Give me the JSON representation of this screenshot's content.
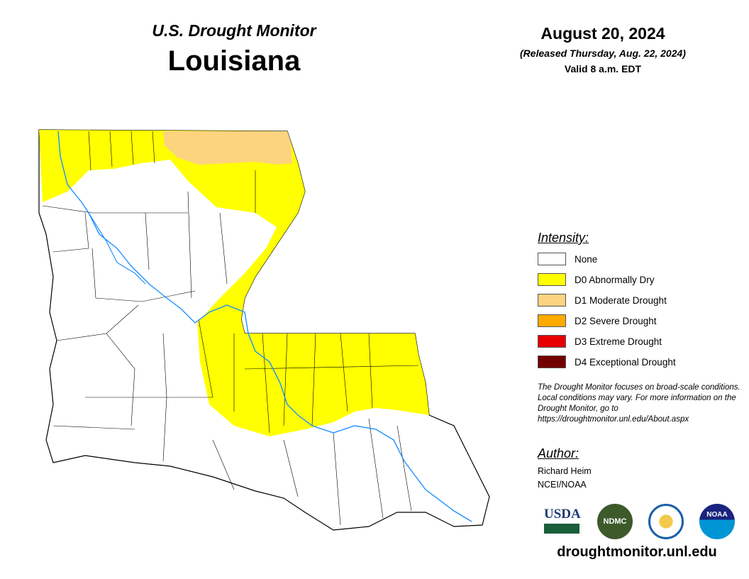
{
  "header": {
    "monitor_title": "U.S. Drought Monitor",
    "state": "Louisiana",
    "date": "August 20, 2024",
    "released": "(Released Thursday, Aug. 22, 2024)",
    "valid": "Valid 8 a.m. EDT"
  },
  "legend": {
    "title": "Intensity:",
    "items": [
      {
        "label": "None",
        "color": "#ffffff"
      },
      {
        "label": "D0 Abnormally Dry",
        "color": "#ffff00"
      },
      {
        "label": "D1 Moderate Drought",
        "color": "#fcd37f"
      },
      {
        "label": "D2 Severe Drought",
        "color": "#ffaa00"
      },
      {
        "label": "D3 Extreme Drought",
        "color": "#e60000"
      },
      {
        "label": "D4 Exceptional Drought",
        "color": "#730000"
      }
    ]
  },
  "disclaimer": "The Drought Monitor focuses on broad-scale conditions. Local conditions may vary. For more information on the Drought Monitor, go to https://droughtmonitor.unl.edu/About.aspx",
  "author": {
    "title": "Author:",
    "name": "Richard Heim",
    "org": "NCEI/NOAA"
  },
  "logos": {
    "usda": "USDA",
    "ndmc": "NDMC",
    "noaa": "NOAA"
  },
  "website": "droughtmonitor.unl.edu",
  "map_colors": {
    "river": "#1e90ff",
    "border": "#000000"
  }
}
